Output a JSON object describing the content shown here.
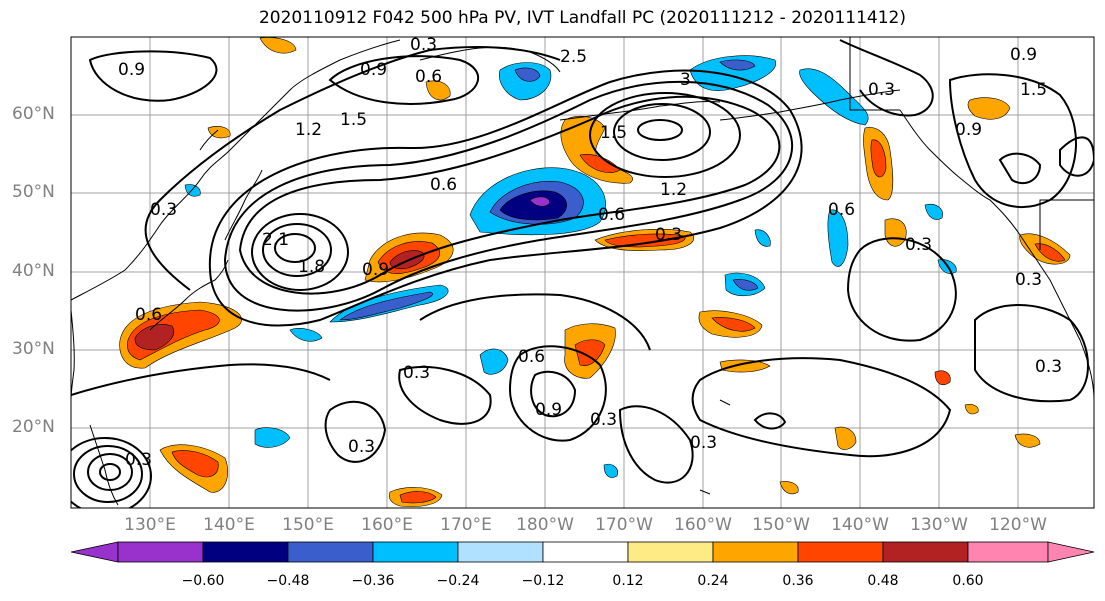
{
  "title": "2020110912 F042 500 hPa PV, IVT Landfall PC (2020111212 - 2020111412)",
  "lat_labels": [
    "60°N",
    "50°N",
    "40°N",
    "30°N",
    "20°N"
  ],
  "lon_labels": [
    "130°E",
    "140°E",
    "150°E",
    "160°E",
    "170°E",
    "180°W",
    "170°W",
    "160°W",
    "150°W",
    "140°W",
    "130°W",
    "120°W"
  ],
  "colorbar": {
    "ticks": [
      "−0.60",
      "−0.48",
      "−0.36",
      "−0.24",
      "−0.12",
      "0.12",
      "0.24",
      "0.36",
      "0.48",
      "0.60"
    ],
    "colors": [
      "#9932cc",
      "#000080",
      "#3a5fcd",
      "#00bfff",
      "#b0e2ff",
      "#ffffff",
      "#ffeb85",
      "#ffa500",
      "#ff4500",
      "#b22222",
      "#ff85b0"
    ]
  },
  "contour_labels": [
    "0.3",
    "0.6",
    "0.9",
    "1.2",
    "1.5",
    "1.8",
    "2.1",
    "2.5",
    "3"
  ],
  "map_colors": {
    "ocean": "#ffffff",
    "coast": "#000000",
    "contour": "#000000",
    "gridline": "#a0a0a0"
  }
}
